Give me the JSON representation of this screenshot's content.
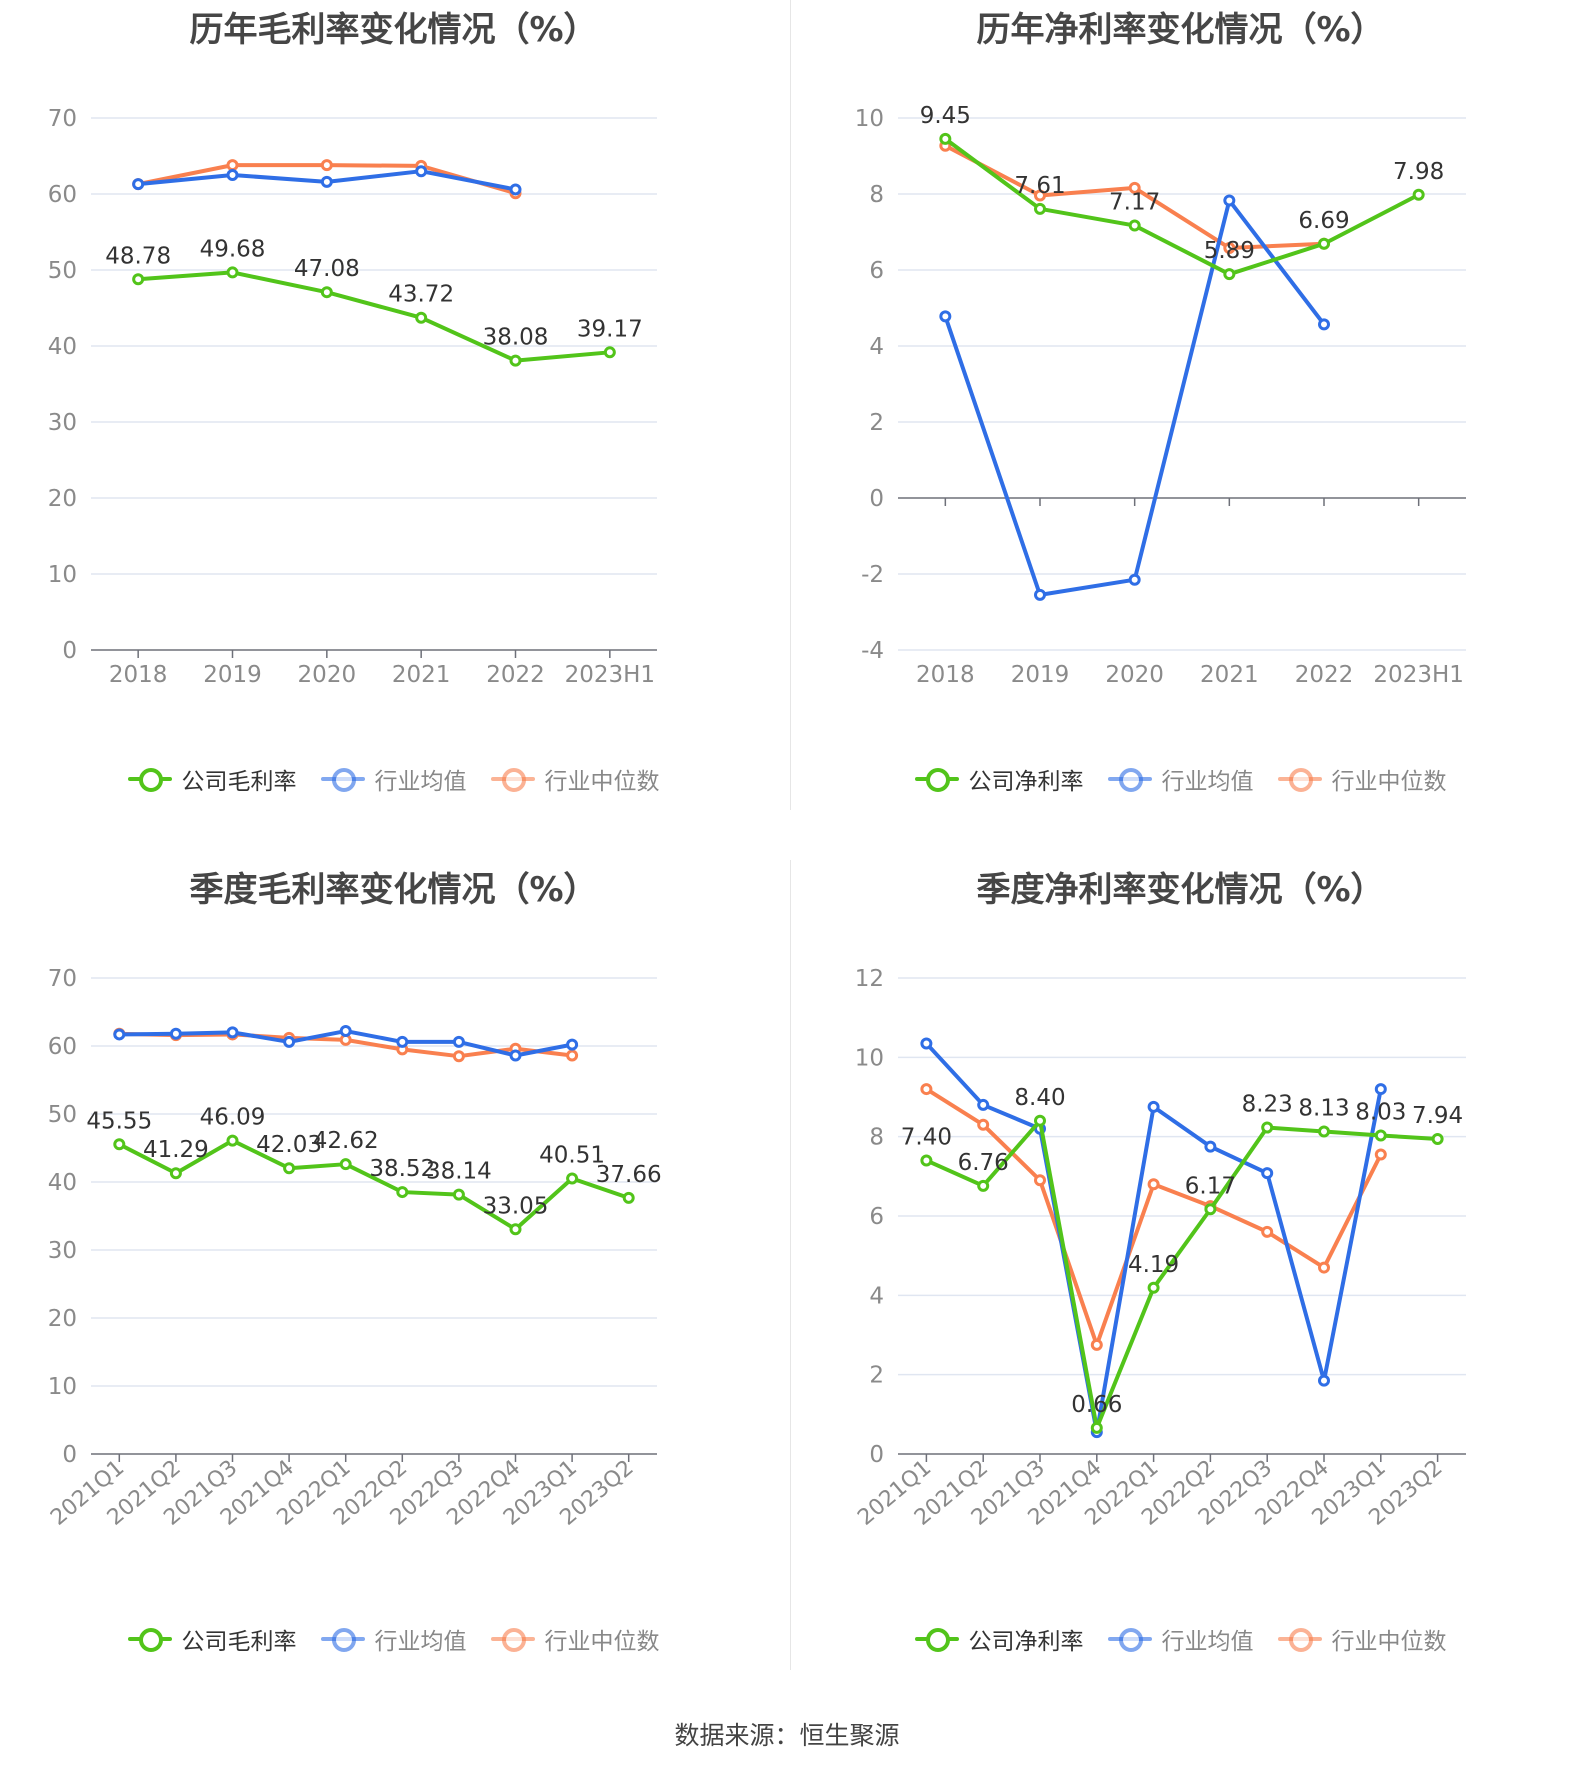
{
  "colors": {
    "company": "#52c41a",
    "mean": "#2f6ee6",
    "median": "#f9804f",
    "grid": "#e0e6f1",
    "axis": "#6e7079",
    "tick": "#8a8a8a",
    "label": "#333333"
  },
  "source": "数据来源：恒生聚源",
  "chart_data": [
    {
      "type": "line",
      "title": "历年毛利率变化情况（%）",
      "categories": [
        "2018",
        "2019",
        "2020",
        "2021",
        "2022",
        "2023H1"
      ],
      "ylim": [
        0,
        70
      ],
      "yticks": [
        0,
        10,
        20,
        30,
        40,
        50,
        60,
        70
      ],
      "rotate_x": false,
      "series": [
        {
          "name": "公司毛利率",
          "key": "company",
          "values": [
            48.78,
            49.68,
            47.08,
            43.72,
            38.08,
            39.17
          ],
          "labels": [
            "48.78",
            "49.68",
            "47.08",
            "43.72",
            "38.08",
            "39.17"
          ]
        },
        {
          "name": "行业均值",
          "key": "mean",
          "values": [
            61.3,
            62.5,
            61.6,
            63.0,
            60.6,
            null
          ]
        },
        {
          "name": "行业中位数",
          "key": "median",
          "values": [
            61.3,
            63.8,
            63.8,
            63.7,
            60.1,
            null
          ]
        }
      ]
    },
    {
      "type": "line",
      "title": "历年净利率变化情况（%）",
      "categories": [
        "2018",
        "2019",
        "2020",
        "2021",
        "2022",
        "2023H1"
      ],
      "ylim": [
        -4,
        10
      ],
      "yticks": [
        -4,
        -2,
        0,
        2,
        4,
        6,
        8,
        10
      ],
      "rotate_x": false,
      "series": [
        {
          "name": "公司净利率",
          "key": "company",
          "values": [
            9.45,
            7.61,
            7.17,
            5.89,
            6.69,
            7.98
          ],
          "labels": [
            "9.45",
            "7.61",
            "7.17",
            "5.89",
            "6.69",
            "7.98"
          ]
        },
        {
          "name": "行业均值",
          "key": "mean",
          "values": [
            4.78,
            -2.55,
            -2.15,
            7.83,
            4.57,
            null
          ]
        },
        {
          "name": "行业中位数",
          "key": "median",
          "values": [
            9.27,
            7.96,
            8.16,
            6.58,
            6.69,
            null
          ]
        }
      ]
    },
    {
      "type": "line",
      "title": "季度毛利率变化情况（%）",
      "categories": [
        "2021Q1",
        "2021Q2",
        "2021Q3",
        "2021Q4",
        "2022Q1",
        "2022Q2",
        "2022Q3",
        "2022Q4",
        "2023Q1",
        "2023Q2"
      ],
      "ylim": [
        0,
        70
      ],
      "yticks": [
        0,
        10,
        20,
        30,
        40,
        50,
        60,
        70
      ],
      "rotate_x": true,
      "series": [
        {
          "name": "公司毛利率",
          "key": "company",
          "values": [
            45.55,
            41.29,
            46.09,
            42.03,
            42.62,
            38.52,
            38.14,
            33.05,
            40.51,
            37.66
          ],
          "labels": [
            "45.55",
            "41.29",
            "46.09",
            "42.03",
            "42.62",
            "38.52",
            "38.14",
            "33.05",
            "40.51",
            "37.66"
          ]
        },
        {
          "name": "行业均值",
          "key": "mean",
          "values": [
            61.7,
            61.8,
            62.0,
            60.6,
            62.2,
            60.6,
            60.6,
            58.6,
            60.2,
            null
          ]
        },
        {
          "name": "行业中位数",
          "key": "median",
          "values": [
            61.8,
            61.6,
            61.7,
            61.2,
            60.9,
            59.5,
            58.5,
            59.6,
            58.6,
            null
          ]
        }
      ]
    },
    {
      "type": "line",
      "title": "季度净利率变化情况（%）",
      "categories": [
        "2021Q1",
        "2021Q2",
        "2021Q3",
        "2021Q4",
        "2022Q1",
        "2022Q2",
        "2022Q3",
        "2022Q4",
        "2023Q1",
        "2023Q2"
      ],
      "ylim": [
        0,
        12
      ],
      "yticks": [
        0,
        2,
        4,
        6,
        8,
        10,
        12
      ],
      "rotate_x": true,
      "series": [
        {
          "name": "公司净利率",
          "key": "company",
          "values": [
            7.4,
            6.76,
            8.4,
            0.66,
            4.19,
            6.17,
            8.23,
            8.13,
            8.03,
            7.94
          ],
          "labels": [
            "7.40",
            "6.76",
            "8.40",
            "0.66",
            "4.19",
            "6.17",
            "8.23",
            "8.13",
            "8.03",
            "7.94"
          ]
        },
        {
          "name": "行业均值",
          "key": "mean",
          "values": [
            10.35,
            8.8,
            8.2,
            0.55,
            8.75,
            7.75,
            7.08,
            1.85,
            9.2,
            null
          ]
        },
        {
          "name": "行业中位数",
          "key": "median",
          "values": [
            9.2,
            8.3,
            6.9,
            2.75,
            6.8,
            6.25,
            5.6,
            4.7,
            7.55,
            null
          ]
        }
      ]
    }
  ]
}
